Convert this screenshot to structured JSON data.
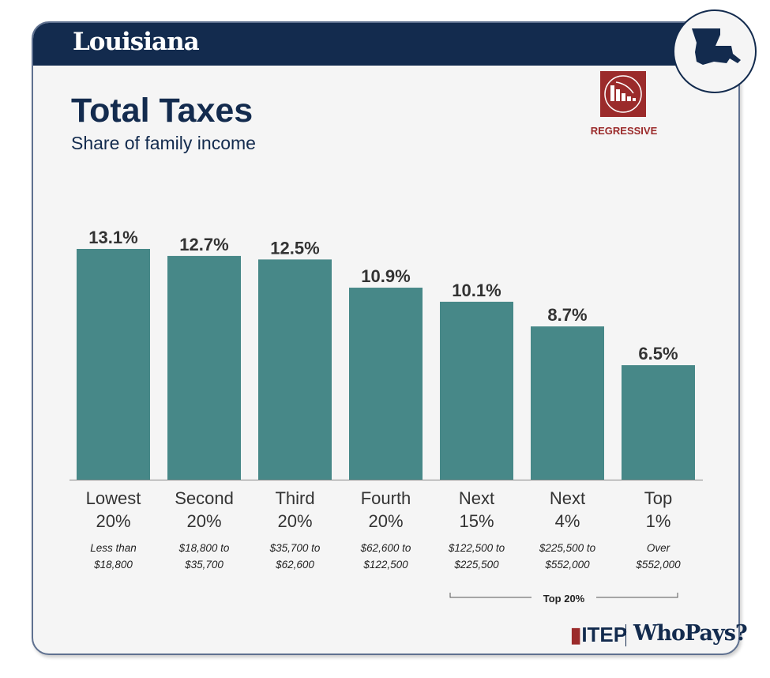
{
  "header": {
    "state": "Louisiana"
  },
  "title": "Total Taxes",
  "subtitle": "Share of family income",
  "badge": {
    "label": "REGRESSIVE",
    "icon": "regressive-chart-icon",
    "color": "#9b2b2b"
  },
  "state_icon": "louisiana-map-icon",
  "footer": {
    "itep": "ITEP",
    "whopays": "WhoPays?"
  },
  "chart_data": {
    "type": "bar",
    "categories": [
      "Lowest 20%",
      "Second 20%",
      "Third 20%",
      "Fourth 20%",
      "Next 15%",
      "Next 4%",
      "Top 1%"
    ],
    "category_lines": [
      [
        "Lowest",
        "20%"
      ],
      [
        "Second",
        "20%"
      ],
      [
        "Third",
        "20%"
      ],
      [
        "Fourth",
        "20%"
      ],
      [
        "Next",
        "15%"
      ],
      [
        "Next",
        "4%"
      ],
      [
        "Top",
        "1%"
      ]
    ],
    "income_ranges": [
      [
        "Less than",
        "$18,800"
      ],
      [
        "$18,800 to",
        "$35,700"
      ],
      [
        "$35,700 to",
        "$62,600"
      ],
      [
        "$62,600 to",
        "$122,500"
      ],
      [
        "$122,500 to",
        "$225,500"
      ],
      [
        "$225,500 to",
        "$552,000"
      ],
      [
        "Over",
        "$552,000"
      ]
    ],
    "values": [
      13.1,
      12.7,
      12.5,
      10.9,
      10.1,
      8.7,
      6.5
    ],
    "data_labels": [
      "13.1%",
      "12.7%",
      "12.5%",
      "10.9%",
      "10.1%",
      "8.7%",
      "6.5%"
    ],
    "group_label": "Top 20%",
    "bar_color": "#478888",
    "ylim": [
      0,
      13.1
    ]
  }
}
